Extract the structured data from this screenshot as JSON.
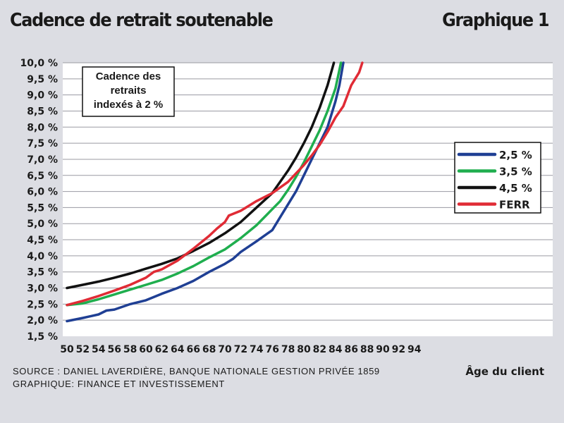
{
  "header": {
    "title": "Cadence de retrait soutenable",
    "figure_label": "Graphique 1"
  },
  "footer": {
    "source": "SOURCE : DANIEL LAVERDIÈRE, BANQUE NATIONALE GESTION PRIVÉE 1859",
    "graphic": "GRAPHIQUE: FINANCE ET INVESTISSEMENT"
  },
  "colors": {
    "background": "#dcdde3",
    "plot_background": "#ffffff",
    "grid": "#9a9aa2"
  },
  "chart_data": {
    "type": "line",
    "title": "",
    "annotation_lines": [
      "Cadence des",
      "retraits",
      "indexés à 2 %"
    ],
    "xlabel": "Âge du client",
    "ylabel": "",
    "xlim": [
      50,
      95
    ],
    "ylim": [
      1.5,
      10.0
    ],
    "x_ticks": [
      50,
      52,
      54,
      56,
      58,
      60,
      62,
      64,
      66,
      68,
      70,
      72,
      74,
      76,
      78,
      80,
      82,
      84,
      86,
      88,
      90,
      92,
      94
    ],
    "y_ticks": [
      1.5,
      2.0,
      2.5,
      3.0,
      3.5,
      4.0,
      4.5,
      5.0,
      5.5,
      6.0,
      6.5,
      7.0,
      7.5,
      8.0,
      8.5,
      9.0,
      9.5,
      10.0
    ],
    "y_tick_labels": [
      "1,5 %",
      "2,0 %",
      "2,5 %",
      "3,0 %",
      "3,5 %",
      "4,0 %",
      "4,5 %",
      "5,0 %",
      "5,5 %",
      "6,0 %",
      "6,5 %",
      "7,0 %",
      "7,5 %",
      "8,0 %",
      "8,5 %",
      "9,0 %",
      "9,5 %",
      "10,0 %"
    ],
    "grid": true,
    "legend_position": "right",
    "series": [
      {
        "name": "2,5 %",
        "color": "#1f3f94",
        "points": [
          [
            50,
            1.97
          ],
          [
            52,
            2.07
          ],
          [
            54,
            2.18
          ],
          [
            55,
            2.3
          ],
          [
            56,
            2.33
          ],
          [
            58,
            2.5
          ],
          [
            60,
            2.62
          ],
          [
            62,
            2.82
          ],
          [
            64,
            3.0
          ],
          [
            66,
            3.22
          ],
          [
            68,
            3.5
          ],
          [
            70,
            3.75
          ],
          [
            71,
            3.9
          ],
          [
            72,
            4.12
          ],
          [
            74,
            4.45
          ],
          [
            76,
            4.8
          ],
          [
            77,
            5.2
          ],
          [
            78,
            5.6
          ],
          [
            79,
            6.0
          ],
          [
            80,
            6.5
          ],
          [
            81,
            7.0
          ],
          [
            82,
            7.5
          ],
          [
            83,
            8.0
          ],
          [
            84,
            8.8
          ],
          [
            84.5,
            9.3
          ],
          [
            85,
            10.0
          ]
        ]
      },
      {
        "name": "3,5 %",
        "color": "#1fae4e",
        "points": [
          [
            50,
            2.47
          ],
          [
            52,
            2.52
          ],
          [
            54,
            2.65
          ],
          [
            56,
            2.8
          ],
          [
            58,
            2.95
          ],
          [
            60,
            3.1
          ],
          [
            62,
            3.25
          ],
          [
            64,
            3.45
          ],
          [
            66,
            3.68
          ],
          [
            68,
            3.95
          ],
          [
            70,
            4.2
          ],
          [
            72,
            4.55
          ],
          [
            74,
            4.95
          ],
          [
            76,
            5.45
          ],
          [
            77,
            5.7
          ],
          [
            78,
            6.05
          ],
          [
            79,
            6.45
          ],
          [
            80,
            6.9
          ],
          [
            81,
            7.4
          ],
          [
            82,
            7.9
          ],
          [
            83,
            8.5
          ],
          [
            84,
            9.2
          ],
          [
            84.7,
            10.0
          ]
        ]
      },
      {
        "name": "4,5 %",
        "color": "#111111",
        "points": [
          [
            50,
            3.0
          ],
          [
            52,
            3.1
          ],
          [
            54,
            3.2
          ],
          [
            56,
            3.32
          ],
          [
            58,
            3.45
          ],
          [
            60,
            3.6
          ],
          [
            62,
            3.75
          ],
          [
            64,
            3.92
          ],
          [
            66,
            4.15
          ],
          [
            68,
            4.4
          ],
          [
            70,
            4.7
          ],
          [
            72,
            5.05
          ],
          [
            74,
            5.5
          ],
          [
            76,
            5.95
          ],
          [
            77,
            6.3
          ],
          [
            78,
            6.65
          ],
          [
            79,
            7.05
          ],
          [
            80,
            7.5
          ],
          [
            81,
            8.0
          ],
          [
            82,
            8.6
          ],
          [
            83,
            9.3
          ],
          [
            83.8,
            10.0
          ]
        ]
      },
      {
        "name": "FERR",
        "color": "#e02b35",
        "points": [
          [
            50,
            2.47
          ],
          [
            52,
            2.6
          ],
          [
            54,
            2.75
          ],
          [
            56,
            2.92
          ],
          [
            58,
            3.1
          ],
          [
            60,
            3.32
          ],
          [
            61,
            3.5
          ],
          [
            62,
            3.58
          ],
          [
            64,
            3.85
          ],
          [
            66,
            4.22
          ],
          [
            68,
            4.62
          ],
          [
            69,
            4.85
          ],
          [
            70,
            5.05
          ],
          [
            70.5,
            5.25
          ],
          [
            72,
            5.4
          ],
          [
            74,
            5.7
          ],
          [
            76,
            5.95
          ],
          [
            78,
            6.3
          ],
          [
            80,
            6.82
          ],
          [
            81,
            7.12
          ],
          [
            82,
            7.45
          ],
          [
            83,
            7.85
          ],
          [
            84,
            8.3
          ],
          [
            85,
            8.65
          ],
          [
            86,
            9.3
          ],
          [
            87,
            9.7
          ],
          [
            87.4,
            10.0
          ]
        ]
      }
    ]
  }
}
